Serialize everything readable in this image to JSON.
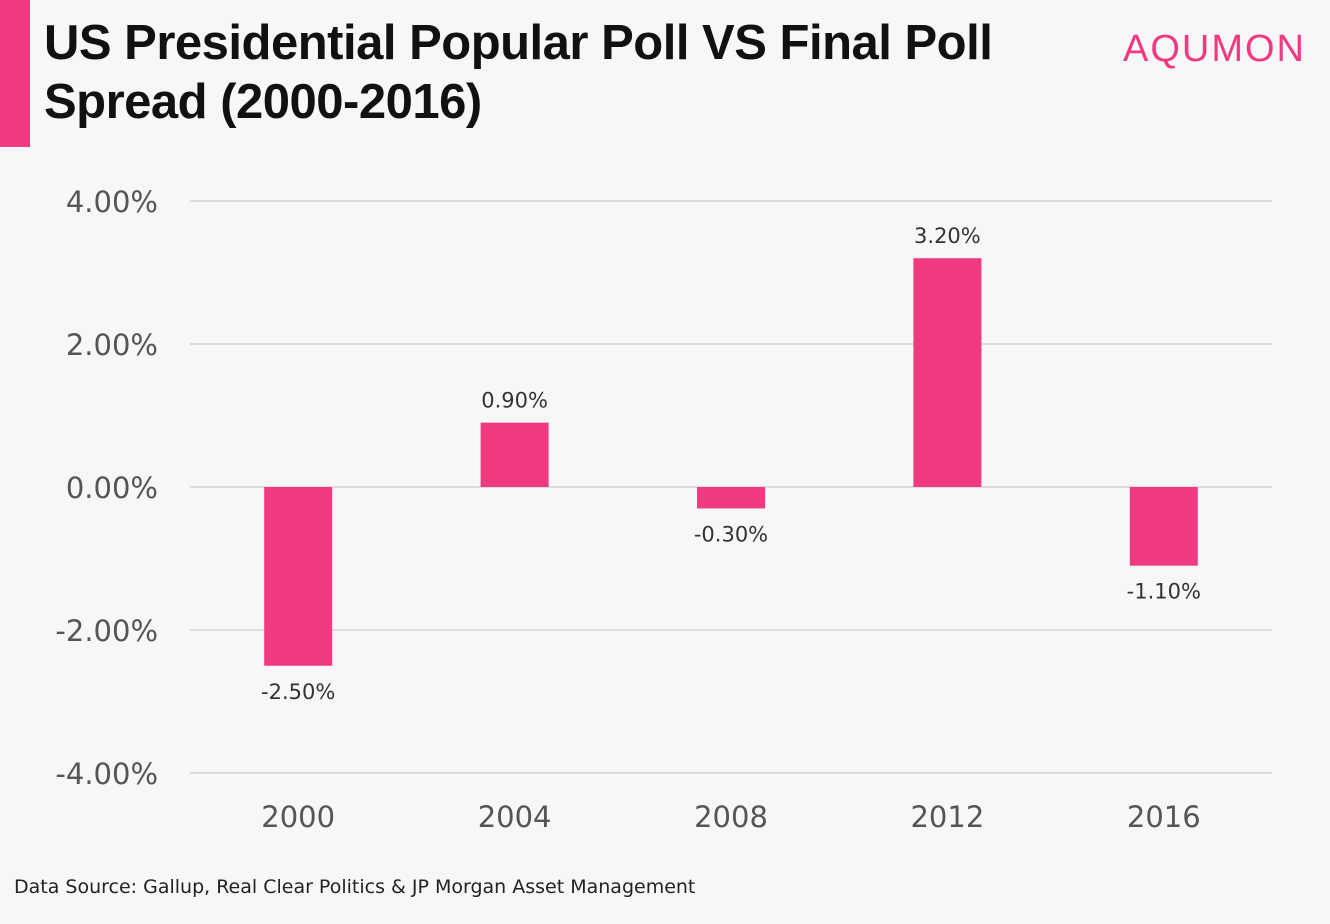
{
  "header": {
    "title_line1": "US Presidential Popular Poll VS Final Poll",
    "title_line2": "Spread (2000-2016)",
    "logo": "AQUMON"
  },
  "footer": {
    "source": "Data Source: Gallup, Real Clear Politics & JP Morgan Asset Management"
  },
  "colors": {
    "accent": "#ef3a82",
    "bar": "#ef3a82",
    "grid": "#d4d4d4",
    "axis_text": "#555555",
    "label_text": "#333333"
  },
  "chart_data": {
    "type": "bar",
    "categories": [
      "2000",
      "2004",
      "2008",
      "2012",
      "2016"
    ],
    "values": [
      -2.5,
      0.9,
      -0.3,
      3.2,
      -1.1
    ],
    "data_labels": [
      "-2.50%",
      "0.90%",
      "-0.30%",
      "3.20%",
      "-1.10%"
    ],
    "yticks": [
      4,
      2,
      0,
      -2,
      -4
    ],
    "ytick_labels": [
      "4.00%",
      "2.00%",
      "0.00%",
      "-2.00%",
      "-4.00%"
    ],
    "ylim": [
      -4,
      4
    ],
    "grid": true,
    "legend": "none"
  }
}
